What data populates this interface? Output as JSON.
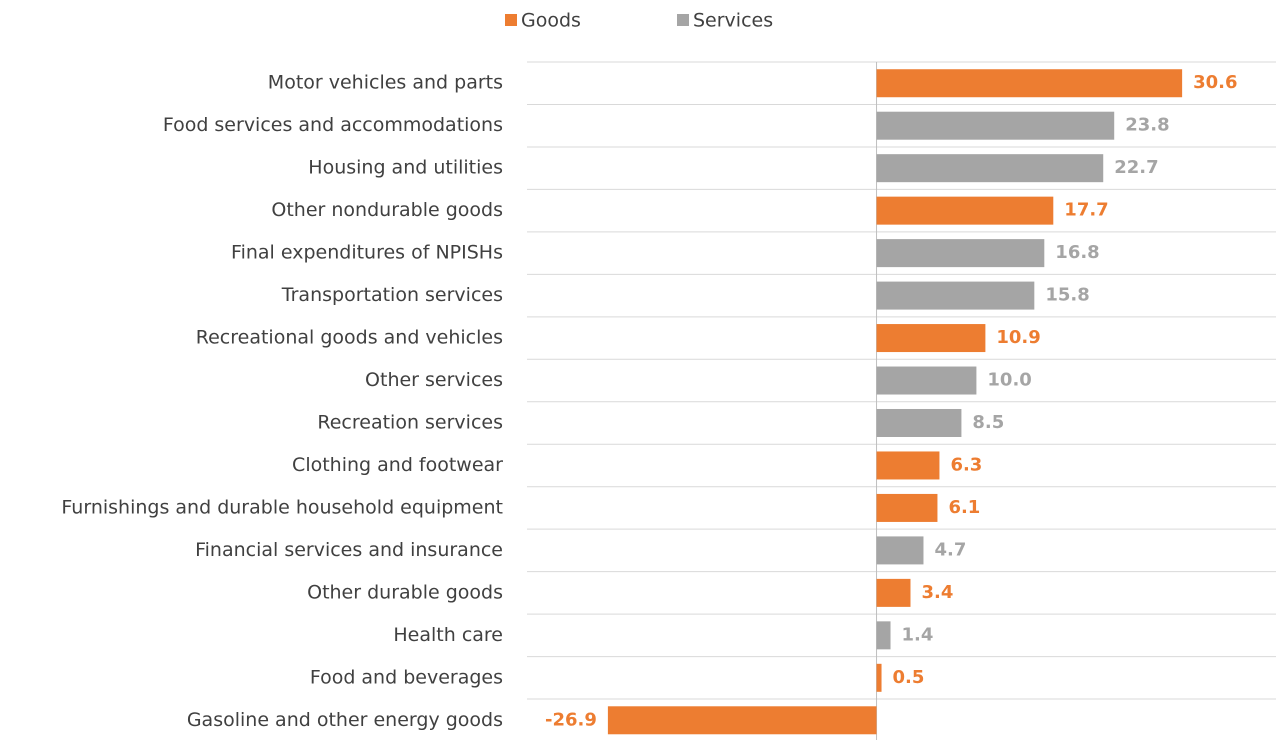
{
  "chart_data": {
    "type": "hbar",
    "categories": [
      "Motor vehicles and parts",
      "Food services and accommodations",
      "Housing and utilities",
      "Other nondurable goods",
      "Final expenditures of NPISHs",
      "Transportation services",
      "Recreational goods and vehicles",
      "Other services",
      "Recreation services",
      "Clothing and footwear",
      "Furnishings and durable household equipment",
      "Financial services and insurance",
      "Other durable goods",
      "Health care",
      "Food and beverages",
      "Gasoline and other energy goods"
    ],
    "series": [
      {
        "name": "Goods",
        "color": "#ed7d31",
        "values": [
          30.6,
          null,
          null,
          17.7,
          null,
          null,
          10.9,
          null,
          null,
          6.3,
          6.1,
          null,
          3.4,
          null,
          0.5,
          -26.9
        ],
        "value_labels": [
          "30.6",
          null,
          null,
          "17.7",
          null,
          null,
          "10.9",
          null,
          null,
          "6.3",
          "6.1",
          null,
          "3.4",
          null,
          "0.5",
          "-26.9"
        ]
      },
      {
        "name": "Services",
        "color": "#a5a5a5",
        "values": [
          null,
          23.8,
          22.7,
          null,
          16.8,
          15.8,
          null,
          10.0,
          8.5,
          null,
          null,
          4.7,
          null,
          1.4,
          null,
          null
        ],
        "value_labels": [
          null,
          "23.8",
          "22.7",
          null,
          "16.8",
          "15.8",
          null,
          "10.0",
          "8.5",
          null,
          null,
          "4.7",
          null,
          "1.4",
          null,
          null
        ]
      }
    ],
    "xlim": [
      -35,
      40
    ],
    "legend": "top"
  }
}
